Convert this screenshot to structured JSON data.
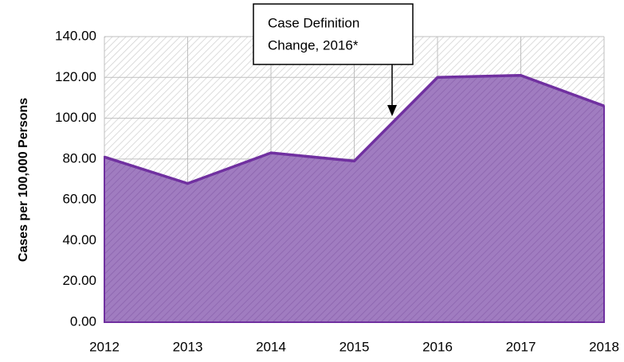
{
  "chart_data": {
    "type": "area",
    "y_label": "Cases per 100,000 Persons",
    "annotation": [
      "Case Definition",
      "Change, 2016*"
    ],
    "x": [
      2012,
      2013,
      2014,
      2015,
      2016,
      2017,
      2018
    ],
    "xlim": [
      2012,
      2018
    ],
    "xticks": [
      2012,
      2013,
      2014,
      2015,
      2016,
      2017,
      2018
    ],
    "series": [
      {
        "color": "#7030a0",
        "values": [
          81,
          68,
          83,
          79,
          120,
          121,
          106
        ]
      }
    ],
    "ylim": [
      0,
      140
    ],
    "yticks": [
      {
        "value": 0,
        "label": "0.00"
      },
      {
        "value": 20,
        "label": "20.00"
      },
      {
        "value": 40,
        "label": "40.00"
      },
      {
        "value": 60,
        "label": "60.00"
      },
      {
        "value": 80,
        "label": "80.00"
      },
      {
        "value": 100,
        "label": "100.00"
      },
      {
        "value": 120,
        "label": "120.00"
      },
      {
        "value": 140,
        "label": "140.00"
      }
    ],
    "grid": true
  }
}
